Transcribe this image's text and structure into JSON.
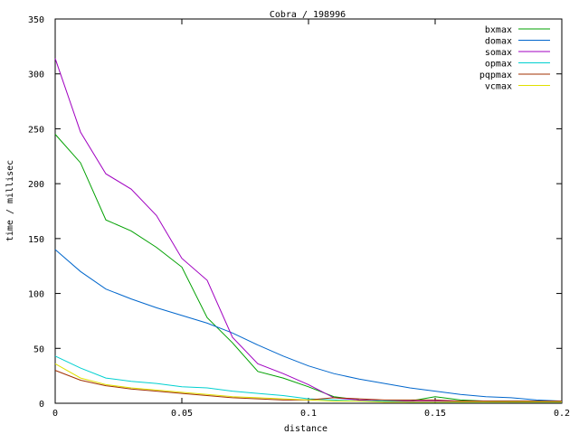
{
  "chart_data": {
    "type": "line",
    "title": "Cobra / 198996",
    "xlabel": "distance",
    "ylabel": "time / millisec",
    "xlim": [
      0,
      0.2
    ],
    "ylim": [
      0,
      350
    ],
    "xticks": [
      0,
      0.05,
      0.1,
      0.15,
      0.2
    ],
    "xtick_labels": [
      "0",
      "0.05",
      "0.1",
      "0.15",
      "0.2"
    ],
    "yticks": [
      0,
      50,
      100,
      150,
      200,
      250,
      300,
      350
    ],
    "ytick_labels": [
      "0",
      "50",
      "100",
      "150",
      "200",
      "250",
      "300",
      "350"
    ],
    "grid": false,
    "legend_position": "top-right",
    "x": [
      0,
      0.01,
      0.02,
      0.03,
      0.04,
      0.05,
      0.06,
      0.07,
      0.08,
      0.09,
      0.1,
      0.11,
      0.12,
      0.13,
      0.14,
      0.15,
      0.16,
      0.17,
      0.18,
      0.19,
      0.2
    ],
    "series": [
      {
        "name": "bxmax",
        "color": "#00a000",
        "values": [
          245,
          219,
          167,
          157,
          142,
          124,
          78,
          55,
          29,
          23,
          15,
          6,
          3,
          2,
          2,
          6,
          3,
          2,
          2,
          2,
          2
        ]
      },
      {
        "name": "domax",
        "color": "#0066cc",
        "values": [
          140,
          120,
          104,
          95,
          87,
          80,
          73,
          64,
          53,
          43,
          34,
          27,
          22,
          18,
          14,
          11,
          8,
          6,
          5,
          3,
          2
        ]
      },
      {
        "name": "somax",
        "color": "#a000c0",
        "values": [
          314,
          247,
          209,
          195,
          171,
          132,
          112,
          60,
          36,
          27,
          17,
          5,
          3,
          2,
          2,
          2,
          2,
          2,
          1,
          1,
          1
        ]
      },
      {
        "name": "opmax",
        "color": "#00d0d0",
        "values": [
          43,
          32,
          23,
          20,
          18,
          15,
          14,
          11,
          9,
          7,
          4,
          3,
          2,
          2,
          1,
          1,
          1,
          1,
          1,
          1,
          1
        ]
      },
      {
        "name": "pqpmax",
        "color": "#a03000",
        "values": [
          30,
          21,
          16,
          13,
          11,
          9,
          7,
          5,
          4,
          3,
          3,
          5,
          4,
          3,
          3,
          3,
          2,
          2,
          2,
          2,
          2
        ]
      },
      {
        "name": "vcmax",
        "color": "#e0e000",
        "values": [
          36,
          23,
          17,
          14,
          12,
          10,
          8,
          6,
          5,
          4,
          3,
          2,
          2,
          1,
          1,
          1,
          1,
          1,
          1,
          1,
          1
        ]
      }
    ]
  }
}
